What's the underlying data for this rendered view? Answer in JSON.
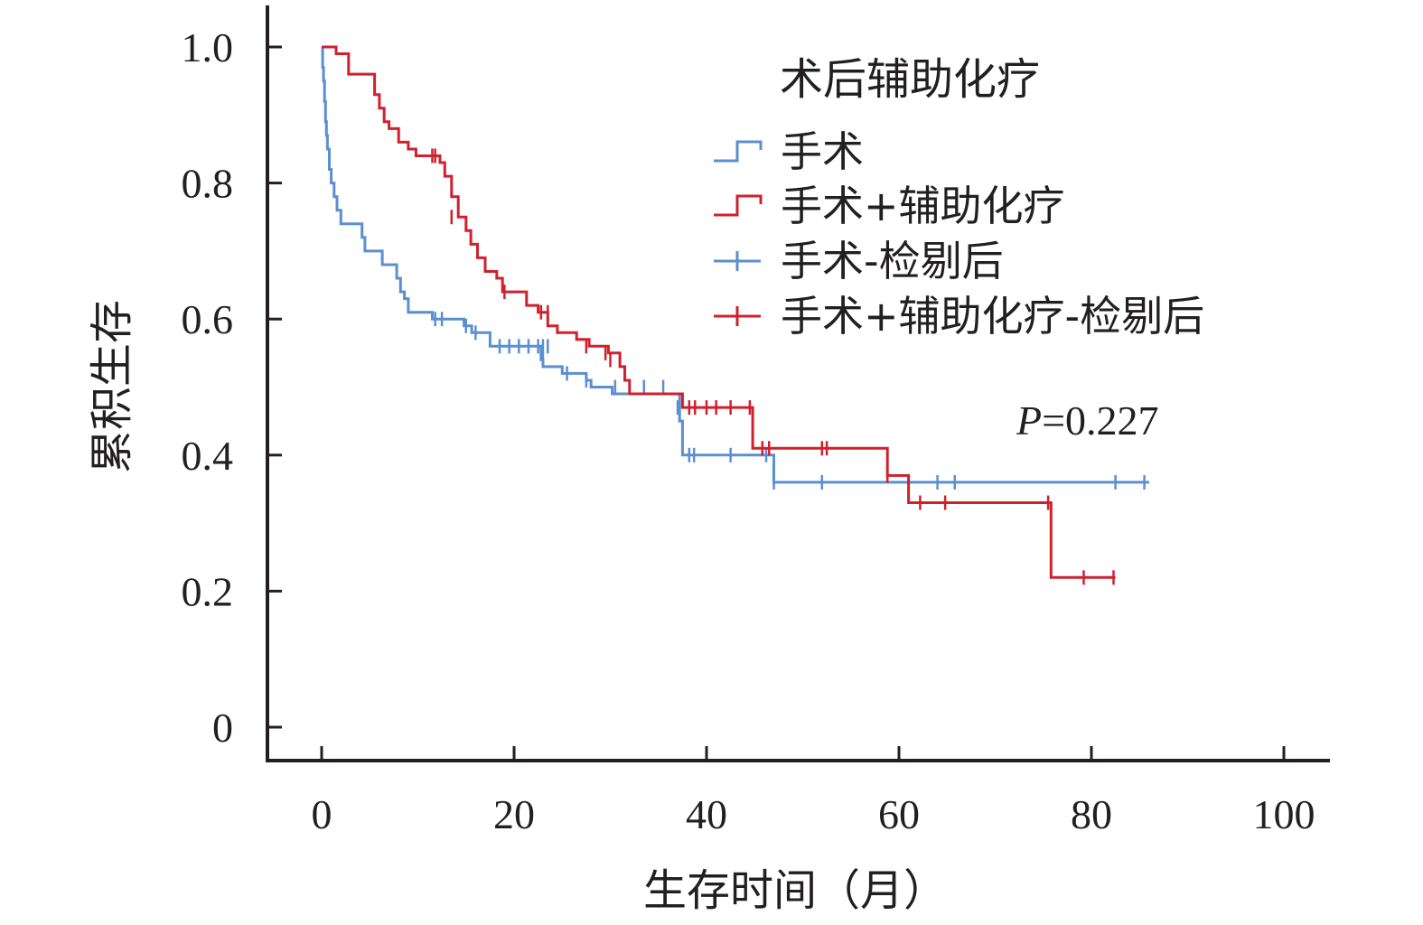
{
  "chart_data": {
    "type": "line",
    "subtype": "kaplan-meier",
    "title": "",
    "xlabel": "生存时间（月）",
    "ylabel": "累积生存",
    "xlim": [
      0,
      100
    ],
    "ylim": [
      0,
      1.0
    ],
    "xticks": [
      0,
      20,
      40,
      60,
      80,
      100
    ],
    "xtick_labels": [
      "0",
      "20",
      "40",
      "60",
      "80",
      "100"
    ],
    "yticks": [
      0,
      0.2,
      0.4,
      0.6,
      0.8,
      1.0
    ],
    "ytick_labels": [
      "0",
      "0.2",
      "0.4",
      "0.6",
      "0.8",
      "1.0"
    ],
    "grid": false,
    "legend": {
      "title": "术后辅助化疗",
      "position": "top-right",
      "entries": [
        {
          "label": "手术",
          "kind": "step",
          "color": "#5b8fd0"
        },
        {
          "label": "手术+辅助化疗",
          "kind": "step",
          "color": "#d0202e"
        },
        {
          "label": "手术-检剔后",
          "kind": "censor",
          "color": "#5b8fd0"
        },
        {
          "label": "手术+辅助化疗-检剔后",
          "kind": "censor",
          "color": "#d0202e"
        }
      ]
    },
    "annotation": {
      "label": "P",
      "value": "=0.227"
    },
    "series": [
      {
        "name": "手术",
        "color": "#5b8fd0",
        "steps": [
          [
            0,
            1.0
          ],
          [
            0.1,
            0.97
          ],
          [
            0.2,
            0.95
          ],
          [
            0.3,
            0.92
          ],
          [
            0.4,
            0.89
          ],
          [
            0.5,
            0.87
          ],
          [
            0.6,
            0.85
          ],
          [
            0.8,
            0.82
          ],
          [
            1.0,
            0.8
          ],
          [
            1.3,
            0.78
          ],
          [
            1.6,
            0.76
          ],
          [
            2.0,
            0.74
          ],
          [
            4.2,
            0.72
          ],
          [
            4.5,
            0.7
          ],
          [
            6.3,
            0.68
          ],
          [
            7.8,
            0.66
          ],
          [
            8.2,
            0.64
          ],
          [
            8.6,
            0.63
          ],
          [
            9.0,
            0.61
          ],
          [
            11.5,
            0.6
          ],
          [
            14.8,
            0.59
          ],
          [
            15.6,
            0.58
          ],
          [
            17.5,
            0.56
          ],
          [
            22.8,
            0.54
          ],
          [
            23.0,
            0.53
          ],
          [
            25.0,
            0.52
          ],
          [
            27.5,
            0.51
          ],
          [
            28.0,
            0.5
          ],
          [
            30.2,
            0.49
          ],
          [
            37.2,
            0.45
          ],
          [
            37.5,
            0.4
          ],
          [
            47.0,
            0.36
          ],
          [
            86.0,
            0.36
          ]
        ],
        "censored": [
          [
            11.8,
            0.6
          ],
          [
            12.5,
            0.6
          ],
          [
            15.0,
            0.59
          ],
          [
            16.0,
            0.58
          ],
          [
            18.5,
            0.56
          ],
          [
            19.5,
            0.56
          ],
          [
            20.5,
            0.56
          ],
          [
            21.5,
            0.56
          ],
          [
            22.5,
            0.56
          ],
          [
            23.0,
            0.56
          ],
          [
            23.5,
            0.56
          ],
          [
            23.0,
            0.54
          ],
          [
            25.5,
            0.52
          ],
          [
            27.5,
            0.51
          ],
          [
            30.5,
            0.5
          ],
          [
            33.5,
            0.5
          ],
          [
            35.5,
            0.5
          ],
          [
            37.0,
            0.47
          ],
          [
            38.2,
            0.4
          ],
          [
            38.7,
            0.4
          ],
          [
            42.5,
            0.4
          ],
          [
            46.2,
            0.4
          ],
          [
            47.0,
            0.36
          ],
          [
            52.0,
            0.36
          ],
          [
            64.0,
            0.36
          ],
          [
            65.8,
            0.36
          ],
          [
            82.5,
            0.36
          ],
          [
            85.5,
            0.36
          ]
        ]
      },
      {
        "name": "手术+辅助化疗",
        "color": "#d0202e",
        "steps": [
          [
            0,
            1.0
          ],
          [
            1.5,
            0.99
          ],
          [
            2.8,
            0.96
          ],
          [
            5.5,
            0.93
          ],
          [
            6.0,
            0.91
          ],
          [
            6.5,
            0.89
          ],
          [
            7.0,
            0.88
          ],
          [
            8.0,
            0.86
          ],
          [
            9.0,
            0.85
          ],
          [
            9.8,
            0.84
          ],
          [
            12.3,
            0.83
          ],
          [
            12.8,
            0.81
          ],
          [
            13.5,
            0.78
          ],
          [
            14.2,
            0.75
          ],
          [
            15.0,
            0.73
          ],
          [
            15.5,
            0.71
          ],
          [
            16.2,
            0.69
          ],
          [
            17.0,
            0.67
          ],
          [
            18.2,
            0.66
          ],
          [
            18.8,
            0.64
          ],
          [
            21.3,
            0.62
          ],
          [
            22.5,
            0.61
          ],
          [
            23.5,
            0.59
          ],
          [
            24.5,
            0.58
          ],
          [
            26.5,
            0.57
          ],
          [
            27.8,
            0.56
          ],
          [
            29.8,
            0.55
          ],
          [
            31.0,
            0.53
          ],
          [
            31.5,
            0.51
          ],
          [
            32.0,
            0.49
          ],
          [
            37.5,
            0.47
          ],
          [
            44.8,
            0.41
          ],
          [
            58.8,
            0.37
          ],
          [
            61.0,
            0.33
          ],
          [
            75.8,
            0.22
          ],
          [
            82.5,
            0.22
          ]
        ],
        "censored": [
          [
            11.5,
            0.84
          ],
          [
            11.8,
            0.84
          ],
          [
            13.5,
            0.75
          ],
          [
            19.0,
            0.64
          ],
          [
            22.8,
            0.61
          ],
          [
            23.5,
            0.61
          ],
          [
            27.5,
            0.56
          ],
          [
            29.5,
            0.55
          ],
          [
            30.0,
            0.54
          ],
          [
            38.2,
            0.47
          ],
          [
            38.8,
            0.47
          ],
          [
            40.0,
            0.47
          ],
          [
            41.0,
            0.47
          ],
          [
            42.5,
            0.47
          ],
          [
            44.5,
            0.47
          ],
          [
            45.8,
            0.41
          ],
          [
            46.5,
            0.41
          ],
          [
            52.0,
            0.41
          ],
          [
            52.5,
            0.41
          ],
          [
            58.8,
            0.37
          ],
          [
            62.2,
            0.33
          ],
          [
            64.8,
            0.33
          ],
          [
            75.5,
            0.33
          ],
          [
            79.2,
            0.22
          ],
          [
            82.3,
            0.22
          ]
        ]
      }
    ]
  }
}
